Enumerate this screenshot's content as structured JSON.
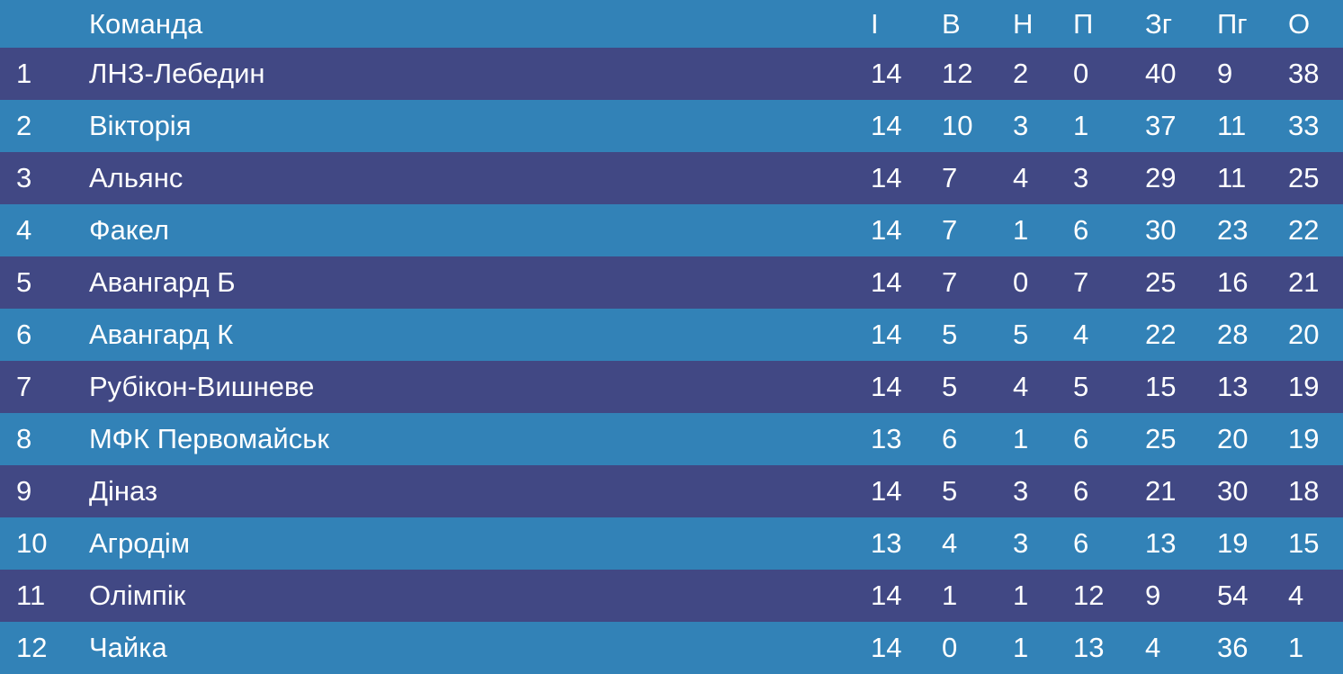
{
  "table": {
    "headers": {
      "team": "Команда",
      "played": "І",
      "won": "В",
      "drawn": "Н",
      "lost": "П",
      "goals_for": "Зг",
      "goals_against": "Пг",
      "points": "О"
    },
    "colors": {
      "row_odd": "#414884",
      "row_even": "#3282b7",
      "text": "#ffffff"
    },
    "rows": [
      {
        "pos": "1",
        "team": "ЛНЗ-Лебедин",
        "played": "14",
        "won": "12",
        "drawn": "2",
        "lost": "0",
        "gf": "40",
        "ga": "9",
        "pts": "38"
      },
      {
        "pos": "2",
        "team": "Вікторія",
        "played": "14",
        "won": "10",
        "drawn": "3",
        "lost": "1",
        "gf": "37",
        "ga": "11",
        "pts": "33"
      },
      {
        "pos": "3",
        "team": "Альянс",
        "played": "14",
        "won": "7",
        "drawn": "4",
        "lost": "3",
        "gf": "29",
        "ga": "11",
        "pts": "25"
      },
      {
        "pos": "4",
        "team": "Факел",
        "played": "14",
        "won": "7",
        "drawn": "1",
        "lost": "6",
        "gf": "30",
        "ga": "23",
        "pts": "22"
      },
      {
        "pos": "5",
        "team": "Авангард Б",
        "played": "14",
        "won": "7",
        "drawn": "0",
        "lost": "7",
        "gf": "25",
        "ga": "16",
        "pts": "21"
      },
      {
        "pos": "6",
        "team": "Авангард К",
        "played": "14",
        "won": "5",
        "drawn": "5",
        "lost": "4",
        "gf": "22",
        "ga": "28",
        "pts": "20"
      },
      {
        "pos": "7",
        "team": "Рубікон-Вишневе",
        "played": "14",
        "won": "5",
        "drawn": "4",
        "lost": "5",
        "gf": "15",
        "ga": "13",
        "pts": "19"
      },
      {
        "pos": "8",
        "team": "МФК Первомайськ",
        "played": "13",
        "won": "6",
        "drawn": "1",
        "lost": "6",
        "gf": "25",
        "ga": "20",
        "pts": "19"
      },
      {
        "pos": "9",
        "team": "Діназ",
        "played": "14",
        "won": "5",
        "drawn": "3",
        "lost": "6",
        "gf": "21",
        "ga": "30",
        "pts": "18"
      },
      {
        "pos": "10",
        "team": "Агродім",
        "played": "13",
        "won": "4",
        "drawn": "3",
        "lost": "6",
        "gf": "13",
        "ga": "19",
        "pts": "15"
      },
      {
        "pos": "11",
        "team": "Олімпік",
        "played": "14",
        "won": "1",
        "drawn": "1",
        "lost": "12",
        "gf": "9",
        "ga": "54",
        "pts": "4"
      },
      {
        "pos": "12",
        "team": "Чайка",
        "played": "14",
        "won": "0",
        "drawn": "1",
        "lost": "13",
        "gf": "4",
        "ga": "36",
        "pts": "1"
      }
    ]
  }
}
